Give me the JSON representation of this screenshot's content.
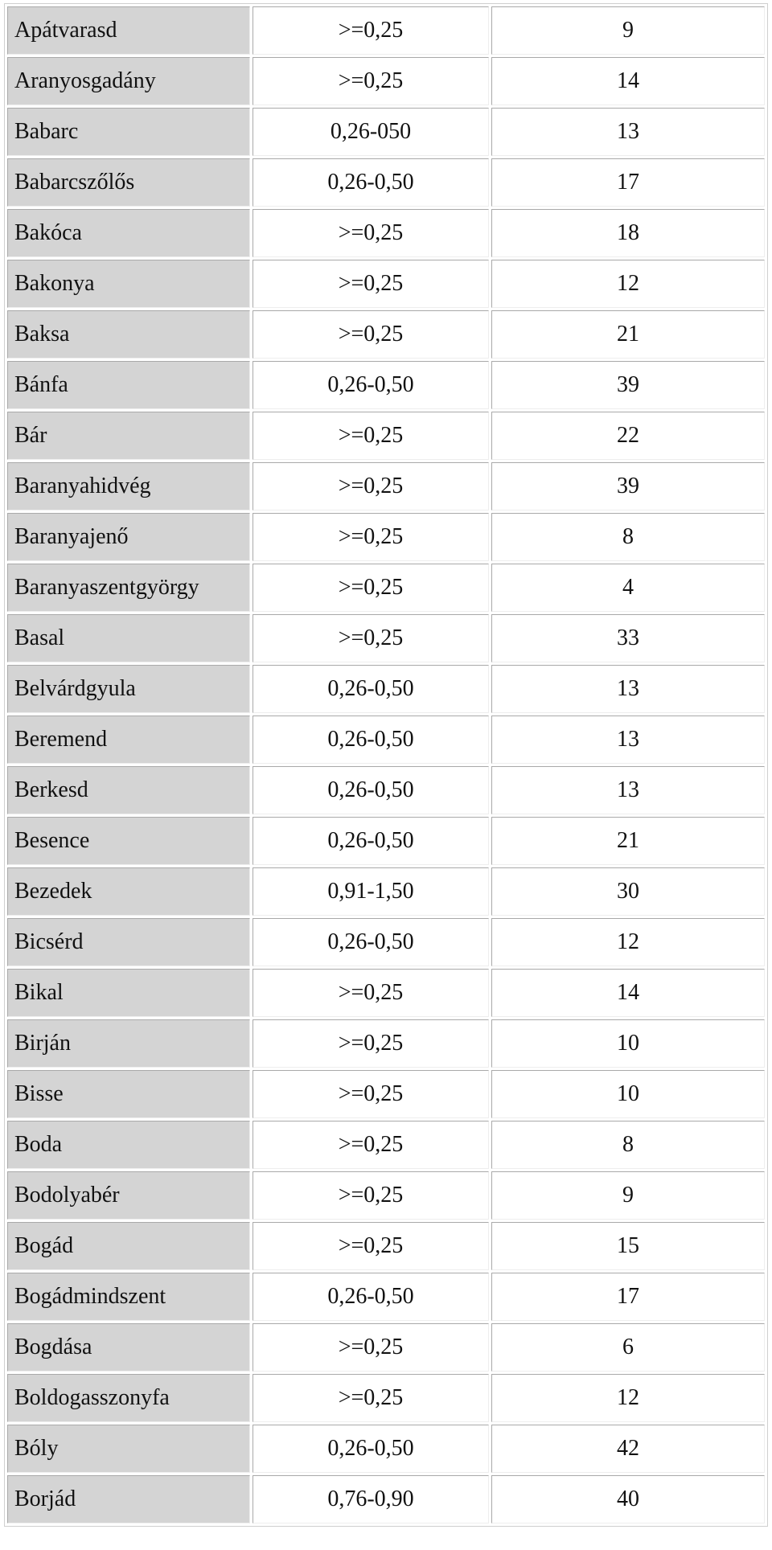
{
  "rows": [
    {
      "name": "Apátvarasd",
      "range": ">=0,25",
      "count": "9"
    },
    {
      "name": "Aranyosgadány",
      "range": ">=0,25",
      "count": "14"
    },
    {
      "name": "Babarc",
      "range": "0,26-050",
      "count": "13"
    },
    {
      "name": "Babarcszőlős",
      "range": "0,26-0,50",
      "count": "17"
    },
    {
      "name": "Bakóca",
      "range": ">=0,25",
      "count": "18"
    },
    {
      "name": "Bakonya",
      "range": ">=0,25",
      "count": "12"
    },
    {
      "name": "Baksa",
      "range": ">=0,25",
      "count": "21"
    },
    {
      "name": "Bánfa",
      "range": "0,26-0,50",
      "count": "39"
    },
    {
      "name": "Bár",
      "range": ">=0,25",
      "count": "22"
    },
    {
      "name": "Baranyahidvég",
      "range": ">=0,25",
      "count": "39"
    },
    {
      "name": "Baranyajenő",
      "range": ">=0,25",
      "count": "8"
    },
    {
      "name": "Baranyaszentgyörgy",
      "range": ">=0,25",
      "count": "4"
    },
    {
      "name": "Basal",
      "range": ">=0,25",
      "count": "33"
    },
    {
      "name": "Belvárdgyula",
      "range": "0,26-0,50",
      "count": "13"
    },
    {
      "name": "Beremend",
      "range": "0,26-0,50",
      "count": "13"
    },
    {
      "name": "Berkesd",
      "range": "0,26-0,50",
      "count": "13"
    },
    {
      "name": "Besence",
      "range": "0,26-0,50",
      "count": "21"
    },
    {
      "name": "Bezedek",
      "range": "0,91-1,50",
      "count": "30"
    },
    {
      "name": "Bicsérd",
      "range": "0,26-0,50",
      "count": "12"
    },
    {
      "name": "Bikal",
      "range": ">=0,25",
      "count": "14"
    },
    {
      "name": "Birján",
      "range": ">=0,25",
      "count": "10"
    },
    {
      "name": "Bisse",
      "range": ">=0,25",
      "count": "10"
    },
    {
      "name": "Boda",
      "range": ">=0,25",
      "count": "8"
    },
    {
      "name": "Bodolyabér",
      "range": ">=0,25",
      "count": "9"
    },
    {
      "name": "Bogád",
      "range": ">=0,25",
      "count": "15"
    },
    {
      "name": "Bogádmindszent",
      "range": "0,26-0,50",
      "count": "17"
    },
    {
      "name": "Bogdása",
      "range": ">=0,25",
      "count": "6"
    },
    {
      "name": "Boldogasszonyfa",
      "range": ">=0,25",
      "count": "12"
    },
    {
      "name": "Bóly",
      "range": "0,26-0,50",
      "count": "42"
    },
    {
      "name": "Borjád",
      "range": "0,76-0,90",
      "count": "40"
    }
  ]
}
